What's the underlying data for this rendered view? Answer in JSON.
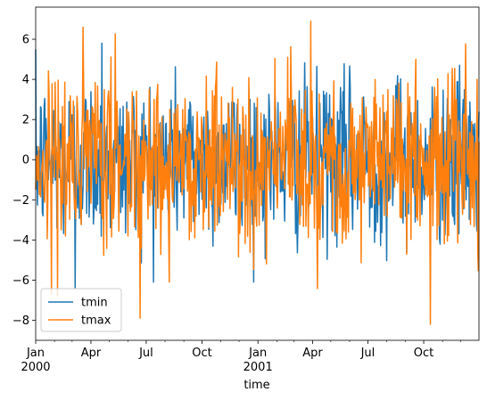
{
  "chart_data": {
    "type": "line",
    "title": "",
    "xlabel": "time",
    "ylabel": "",
    "x_range": [
      "2000-01-01",
      "2001-12-31"
    ],
    "ylim": [
      -9,
      7.6
    ],
    "yticks": [
      -8,
      -6,
      -4,
      -2,
      0,
      2,
      4,
      6
    ],
    "xticks": [
      {
        "date": "2000-01-01",
        "label": "Jan",
        "sub": "2000"
      },
      {
        "date": "2000-04-01",
        "label": "Apr",
        "sub": ""
      },
      {
        "date": "2000-07-01",
        "label": "Jul",
        "sub": ""
      },
      {
        "date": "2000-10-01",
        "label": "Oct",
        "sub": ""
      },
      {
        "date": "2001-01-01",
        "label": "Jan",
        "sub": "2001"
      },
      {
        "date": "2001-04-01",
        "label": "Apr",
        "sub": ""
      },
      {
        "date": "2001-07-01",
        "label": "Jul",
        "sub": ""
      },
      {
        "date": "2001-10-01",
        "label": "Oct",
        "sub": ""
      }
    ],
    "grid": false,
    "legend_position": "lower-left",
    "series": [
      {
        "name": "tmin",
        "color": "#1f77b4",
        "std": 2.0,
        "extremes": {
          "max": 5.8,
          "min": -6.4
        }
      },
      {
        "name": "tmax",
        "color": "#ff7f0e",
        "std": 2.2,
        "extremes": {
          "max": 6.9,
          "min": -8.2
        }
      }
    ]
  }
}
